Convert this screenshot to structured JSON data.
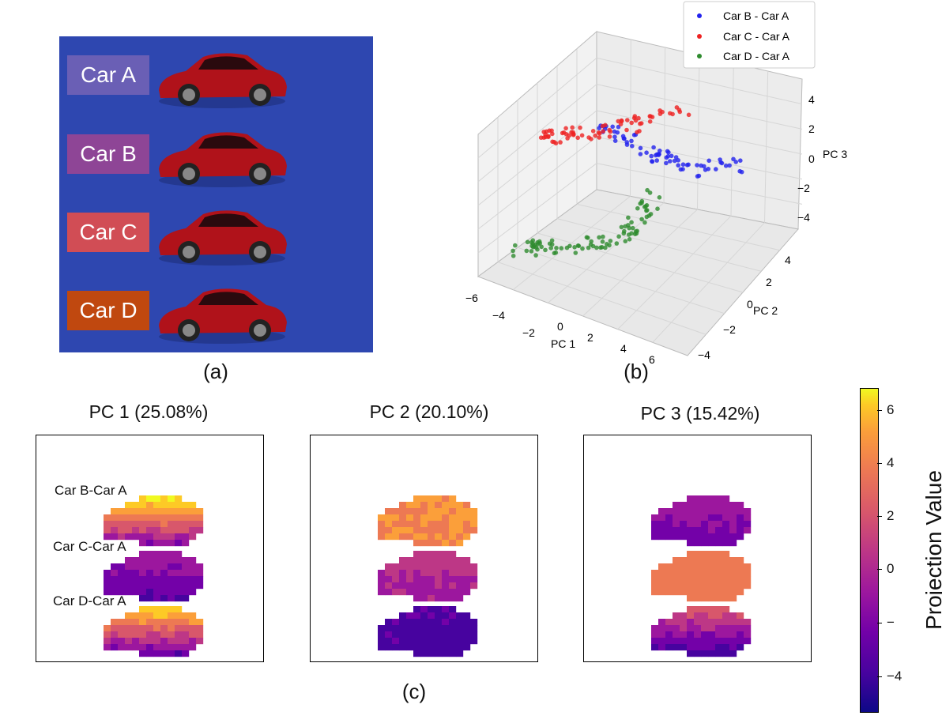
{
  "panel_a": {
    "cars": [
      {
        "label": "Car A",
        "color": "#6a5fb5"
      },
      {
        "label": "Car B",
        "color": "#8e4596"
      },
      {
        "label": "Car C",
        "color": "#d14d55"
      },
      {
        "label": "Car D",
        "color": "#c0480f"
      }
    ],
    "caption": "(a)"
  },
  "panel_b": {
    "caption": "(b)",
    "chart_data": {
      "type": "scatter",
      "title": "",
      "xlabel": "PC 1",
      "ylabel": "PC 2",
      "zlabel": "PC 3",
      "x_ticks": [
        "−6",
        "−4",
        "−2",
        "0",
        "2",
        "4",
        "6"
      ],
      "y_ticks": [
        "−4",
        "−2",
        "0",
        "2",
        "4"
      ],
      "z_ticks": [
        "−4",
        "−2",
        "0",
        "2",
        "4"
      ],
      "legend": [
        {
          "name": "Car B - Car A",
          "color": "#2222ee"
        },
        {
          "name": "Car C - Car A",
          "color": "#ee2222"
        },
        {
          "name": "Car D - Car A",
          "color": "#2e8b2e"
        }
      ],
      "legend_position": "top-right"
    }
  },
  "panel_c": {
    "caption": "(c)",
    "titles": [
      "PC 1 (25.08%)",
      "PC 2 (20.10%)",
      "PC 3 (15.42%)"
    ],
    "row_labels": [
      "Car B-Car A",
      "Car C-Car A",
      "Car D-Car A"
    ],
    "colorbar": {
      "label": "Projection Value",
      "ticks": [
        "6",
        "4",
        "2",
        "0",
        "−",
        "−4"
      ]
    }
  }
}
